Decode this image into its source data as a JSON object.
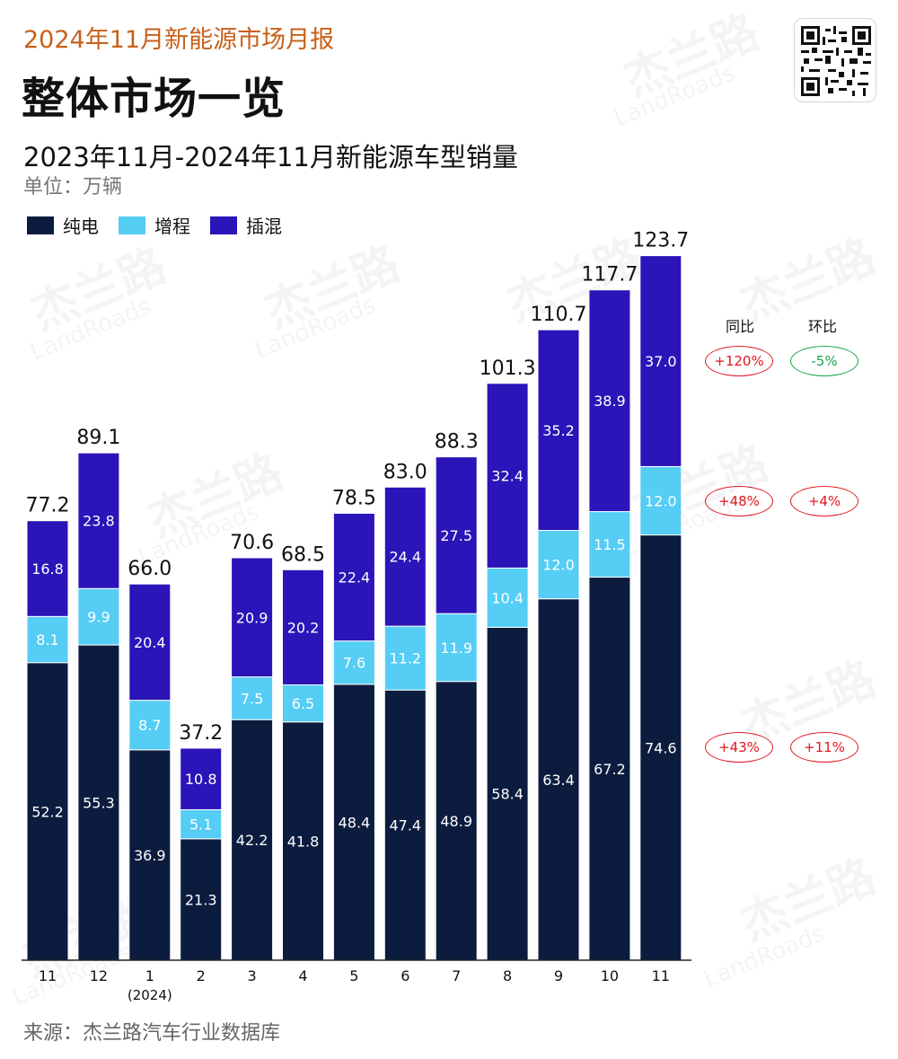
{
  "header": {
    "report": "2024年11月新能源市场月报",
    "title": "整体市场一览",
    "subtitle": "2023年11月-2024年11月新能源车型销量",
    "unit": "单位：万辆"
  },
  "legend": [
    {
      "label": "纯电",
      "color": "#0c1c3f"
    },
    {
      "label": "增程",
      "color": "#55cdf5"
    },
    {
      "label": "插混",
      "color": "#2b14b8"
    }
  ],
  "watermark": {
    "text_cn": "杰兰路",
    "text_en": "LandRoads"
  },
  "qr": {
    "icon": "qr-code-icon"
  },
  "source": "来源：杰兰路汽车行业数据库",
  "comparison": {
    "headers": [
      "同比",
      "环比"
    ],
    "rows": [
      {
        "series": "插混",
        "yoy": "+120%",
        "mom": "-5%",
        "yoy_color": "#e0161e",
        "mom_color": "#1aa34a"
      },
      {
        "series": "增程",
        "yoy": "+48%",
        "mom": "+4%",
        "yoy_color": "#e0161e",
        "mom_color": "#e0161e"
      },
      {
        "series": "纯电",
        "yoy": "+43%",
        "mom": "+11%",
        "yoy_color": "#e0161e",
        "mom_color": "#e0161e"
      }
    ]
  },
  "chart_data": {
    "type": "bar",
    "stacked": true,
    "categories": [
      "11",
      "12",
      "1",
      "2",
      "3",
      "4",
      "5",
      "6",
      "7",
      "8",
      "9",
      "10",
      "11"
    ],
    "category_sublabels": [
      "",
      "",
      "(2024)",
      "",
      "",
      "",
      "",
      "",
      "",
      "",
      "",
      "",
      ""
    ],
    "series": [
      {
        "name": "纯电",
        "color": "#0c1c3f",
        "values": [
          52.2,
          55.3,
          36.9,
          21.3,
          42.2,
          41.8,
          48.4,
          47.4,
          48.9,
          58.4,
          63.4,
          67.2,
          74.6
        ]
      },
      {
        "name": "增程",
        "color": "#55cdf5",
        "values": [
          8.1,
          9.9,
          8.7,
          5.1,
          7.5,
          6.5,
          7.6,
          11.2,
          11.9,
          10.4,
          12.0,
          11.5,
          12.0
        ]
      },
      {
        "name": "插混",
        "color": "#2b14b8",
        "values": [
          16.8,
          23.8,
          20.4,
          10.8,
          20.9,
          20.2,
          22.4,
          24.4,
          27.5,
          32.4,
          35.2,
          38.9,
          37.0
        ]
      }
    ],
    "totals": [
      "77.2",
      "89.1",
      "66.0",
      "37.2",
      "70.6",
      "68.5",
      "78.5",
      "83.0",
      "88.3",
      "101.3",
      "110.7",
      "117.7",
      "123.7"
    ],
    "value_labels": [
      [
        "52.2",
        "55.3",
        "36.9",
        "21.3",
        "42.2",
        "41.8",
        "48.4",
        "47.4",
        "48.9",
        "58.4",
        "63.4",
        "67.2",
        "74.6"
      ],
      [
        "8.1",
        "9.9",
        "8.7",
        "5.1",
        "7.5",
        "6.5",
        "7.6",
        "11.2",
        "11.9",
        "10.4",
        "12.0",
        "11.5",
        "12.0"
      ],
      [
        "16.8",
        "23.8",
        "20.4",
        "10.8",
        "20.9",
        "20.2",
        "22.4",
        "24.4",
        "27.5",
        "32.4",
        "35.2",
        "38.9",
        "37.0"
      ]
    ],
    "ylim": [
      0,
      123.7
    ],
    "grid": false,
    "legend_position": "top-left"
  }
}
